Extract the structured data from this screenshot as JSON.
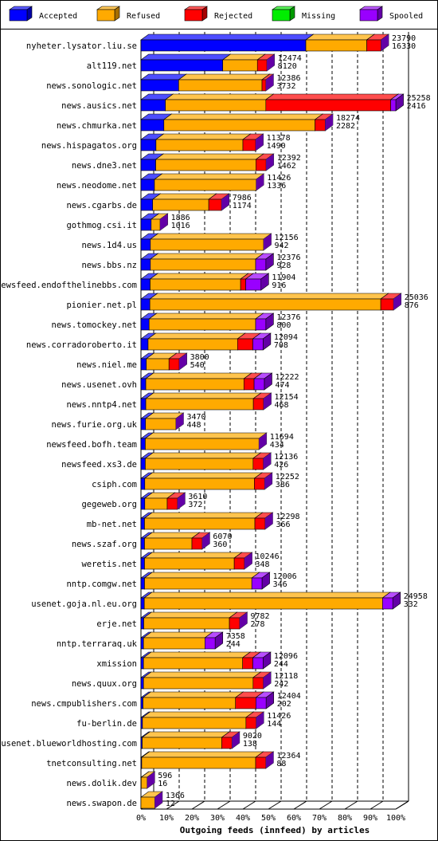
{
  "chart_data": {
    "type": "bar3d_stacked_horizontal",
    "x_label": "Outgoing feeds (innfeed) by articles",
    "categories": [
      "nyheter.lysator.liu.se",
      "alt119.net",
      "news.sonologic.net",
      "news.ausics.net",
      "news.chmurka.net",
      "news.hispagatos.org",
      "news.dne3.net",
      "news.neodome.net",
      "news.cgarbs.de",
      "gothmog.csi.it",
      "news.1d4.us",
      "news.bbs.nz",
      "newsfeed.endofthelinebbs.com",
      "pionier.net.pl",
      "news.tomockey.net",
      "news.corradoroberto.it",
      "news.niel.me",
      "news.usenet.ovh",
      "news.nntp4.net",
      "news.furie.org.uk",
      "newsfeed.bofh.team",
      "newsfeed.xs3.de",
      "csiph.com",
      "gegeweb.org",
      "mb-net.net",
      "news.szaf.org",
      "weretis.net",
      "nntp.comgw.net",
      "usenet.goja.nl.eu.org",
      "erje.net",
      "nntp.terraraq.uk",
      "xmission",
      "news.quux.org",
      "news.cmpublishers.com",
      "fu-berlin.de",
      "usenet.blueworldhosting.com",
      "tnetconsulting.net",
      "news.dolik.dev",
      "news.swapon.de"
    ],
    "offered": [
      23790,
      12474,
      12386,
      25258,
      18274,
      11378,
      12392,
      11426,
      7986,
      1886,
      12156,
      12376,
      11904,
      25036,
      12376,
      12094,
      3800,
      12222,
      12154,
      3470,
      11694,
      12136,
      12252,
      3610,
      12298,
      6070,
      10246,
      12006,
      24958,
      9782,
      7358,
      12096,
      12118,
      12404,
      11426,
      9020,
      12364,
      596,
      1366
    ],
    "accepted": [
      16330,
      8120,
      3732,
      2416,
      2282,
      1490,
      1462,
      1336,
      1174,
      1016,
      942,
      928,
      916,
      876,
      800,
      708,
      540,
      474,
      468,
      448,
      434,
      426,
      386,
      372,
      366,
      360,
      348,
      346,
      332,
      278,
      244,
      244,
      242,
      202,
      144,
      138,
      88,
      16,
      12
    ],
    "series": [
      {
        "name": "Accepted",
        "color": "#0000ff",
        "values": [
          64.7,
          32.1,
          14.8,
          9.6,
          9.0,
          5.9,
          5.8,
          5.3,
          4.6,
          4.0,
          3.7,
          3.7,
          3.6,
          3.5,
          3.2,
          2.8,
          2.1,
          1.9,
          1.9,
          1.8,
          1.7,
          1.7,
          1.5,
          1.5,
          1.4,
          1.4,
          1.4,
          1.4,
          1.3,
          1.1,
          1.0,
          1.0,
          1.0,
          0.8,
          0.6,
          0.5,
          0.3,
          0.1,
          0.0
        ]
      },
      {
        "name": "Refused",
        "color": "#ffaa00",
        "values": [
          23.9,
          13.6,
          32.7,
          39.4,
          59.3,
          34.1,
          39.3,
          39.9,
          22.0,
          3.5,
          44.4,
          41.3,
          35.5,
          90.6,
          41.8,
          35.1,
          8.9,
          38.5,
          42.2,
          11.9,
          44.6,
          42.3,
          43.0,
          8.8,
          43.3,
          18.6,
          35.2,
          42.1,
          93.5,
          33.6,
          24.1,
          38.9,
          43.0,
          36.3,
          40.6,
          31.2,
          44.7,
          2.3,
          5.4
        ]
      },
      {
        "name": "Rejected",
        "color": "#ff0000",
        "values": [
          5.6,
          3.7,
          1.5,
          49.0,
          4.0,
          5.0,
          4.0,
          0,
          5.0,
          0,
          0,
          0,
          2.0,
          5.0,
          0,
          6.0,
          4.0,
          4.0,
          4.0,
          0,
          0,
          4.0,
          4.0,
          4.0,
          4.0,
          4.0,
          4.0,
          0,
          0,
          4.0,
          0,
          4.0,
          4.0,
          8.0,
          4.0,
          4.0,
          4.0,
          0,
          0
        ]
      },
      {
        "name": "Missing",
        "color": "#00ee00",
        "values": [
          0,
          0,
          0,
          0,
          0,
          0,
          0,
          0,
          0,
          0,
          0,
          0,
          0,
          0,
          0,
          0,
          0,
          0,
          0,
          0,
          0,
          0,
          0,
          0,
          0,
          0,
          0,
          0,
          0,
          0,
          0,
          0,
          0,
          0,
          0,
          0,
          0,
          0,
          0
        ]
      },
      {
        "name": "Spooled",
        "color": "#9900ff",
        "values": [
          0,
          0,
          0,
          2.0,
          0,
          0,
          0,
          0,
          0,
          0,
          0,
          4.0,
          6.0,
          0,
          4.0,
          4.0,
          0,
          4.0,
          0,
          0,
          0,
          0,
          0,
          0,
          0,
          0,
          0,
          4.0,
          4.0,
          0,
          4.0,
          4.0,
          0,
          4.0,
          0,
          0,
          0,
          0,
          0
        ]
      }
    ],
    "xlim": [
      0,
      100
    ],
    "xticks": [
      {
        "value": 0,
        "label": "0%"
      },
      {
        "value": 10,
        "label": "10%"
      },
      {
        "value": 20,
        "label": "20%"
      },
      {
        "value": 30,
        "label": "30%"
      },
      {
        "value": 40,
        "label": "40%"
      },
      {
        "value": 50,
        "label": "50%"
      },
      {
        "value": 60,
        "label": "60%"
      },
      {
        "value": 70,
        "label": "70%"
      },
      {
        "value": 80,
        "label": "80%"
      },
      {
        "value": 90,
        "label": "90%"
      },
      {
        "value": 100,
        "label": "100%"
      }
    ],
    "grid": true,
    "legend": "top"
  }
}
